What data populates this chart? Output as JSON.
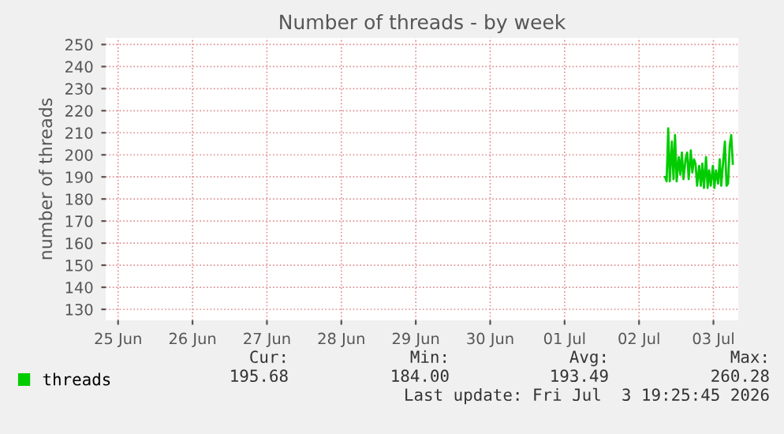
{
  "chart_data": {
    "type": "line",
    "title": "Number of threads - by week",
    "ylabel": "number of threads",
    "x": [
      "2026-07-02T08:24",
      "2026-07-02T08:54",
      "2026-07-02T09:25",
      "2026-07-02T09:55",
      "2026-07-02T10:36",
      "2026-07-02T11:07",
      "2026-07-02T11:37",
      "2026-07-02T12:08",
      "2026-07-02T12:48",
      "2026-07-02T13:19",
      "2026-07-02T13:49",
      "2026-07-02T14:20",
      "2026-07-02T15:00",
      "2026-07-02T15:31",
      "2026-07-02T16:01",
      "2026-07-02T16:42",
      "2026-07-02T17:12",
      "2026-07-02T17:43",
      "2026-07-02T18:13",
      "2026-07-02T18:44",
      "2026-07-02T19:24",
      "2026-07-02T19:55",
      "2026-07-02T20:25",
      "2026-07-02T20:56",
      "2026-07-02T21:36",
      "2026-07-02T22:07",
      "2026-07-02T22:37",
      "2026-07-02T23:08",
      "2026-07-02T23:49",
      "2026-07-03T00:19",
      "2026-07-03T00:49",
      "2026-07-03T01:30",
      "2026-07-03T02:01",
      "2026-07-03T02:31",
      "2026-07-03T03:12",
      "2026-07-03T03:42",
      "2026-07-03T04:13",
      "2026-07-03T04:43",
      "2026-07-03T05:14",
      "2026-07-03T05:44",
      "2026-07-03T06:15"
    ],
    "series": [
      {
        "name": "threads",
        "color": "#00cc00",
        "values": [
          190,
          188,
          212,
          188,
          206,
          189,
          209,
          188,
          199,
          191,
          201,
          189,
          198,
          201,
          189,
          202,
          192,
          198,
          196,
          186,
          195,
          186,
          196,
          185,
          199,
          185,
          193,
          186,
          195,
          185,
          193,
          187,
          198,
          186,
          198,
          206,
          186,
          187,
          204,
          209,
          196
        ]
      }
    ],
    "xlim": [
      "2026-06-24T20:00",
      "2026-07-03T08:00"
    ],
    "xticks": [
      {
        "value": "2026-06-25",
        "label": "25 Jun"
      },
      {
        "value": "2026-06-26",
        "label": "26 Jun"
      },
      {
        "value": "2026-06-27",
        "label": "27 Jun"
      },
      {
        "value": "2026-06-28",
        "label": "28 Jun"
      },
      {
        "value": "2026-06-29",
        "label": "29 Jun"
      },
      {
        "value": "2026-06-30",
        "label": "30 Jun"
      },
      {
        "value": "2026-07-01",
        "label": "01 Jul"
      },
      {
        "value": "2026-07-02",
        "label": "02 Jul"
      },
      {
        "value": "2026-07-03",
        "label": "03 Jul"
      }
    ],
    "ylim": [
      125,
      253
    ],
    "yticks": [
      130,
      140,
      150,
      160,
      170,
      180,
      190,
      200,
      210,
      220,
      230,
      240,
      250
    ],
    "grid": true,
    "legend": "bottom left",
    "annotations": [
      "Cur:",
      "Min:",
      "Avg:",
      "Max:",
      "195.68",
      "184.00",
      "193.49",
      "260.28",
      "Last update: Fri Jul  3 19:25:45 2026"
    ]
  }
}
